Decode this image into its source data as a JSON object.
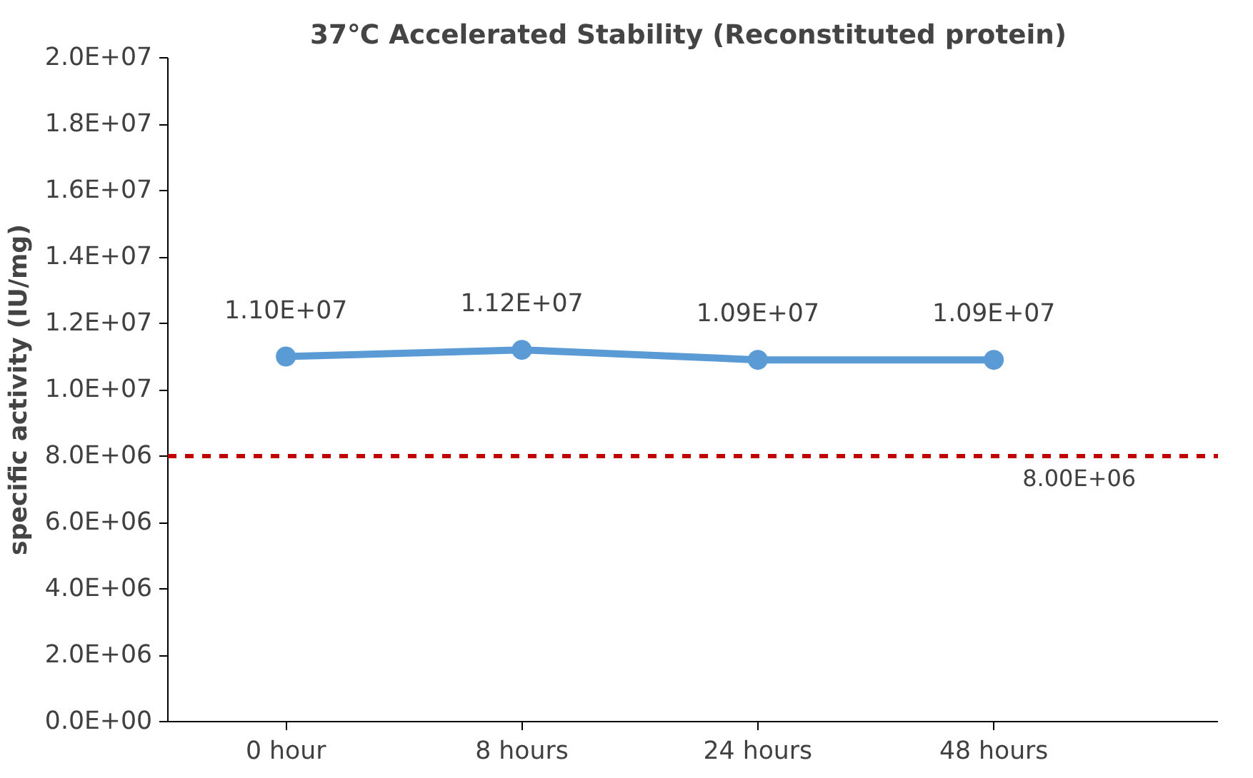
{
  "chart_data": {
    "type": "line",
    "title": "37℃ Accelerated  Stability (Reconstituted protein)",
    "ylabel": "specific activity (IU/mg)",
    "categories": [
      "0 hour",
      "8 hours",
      "24 hours",
      "48 hours"
    ],
    "series": [
      {
        "color": "#5b9bd5",
        "values": [
          11000000,
          11200000,
          10900000,
          10900000
        ],
        "value_labels": [
          "1.10E+07",
          "1.12E+07",
          "1.09E+07",
          "1.09E+07"
        ]
      }
    ],
    "ylim": [
      0,
      20000000
    ],
    "yticks": [
      {
        "value": 0,
        "label": "0.0E+00"
      },
      {
        "value": 2000000,
        "label": "2.0E+06"
      },
      {
        "value": 4000000,
        "label": "4.0E+06"
      },
      {
        "value": 6000000,
        "label": "6.0E+06"
      },
      {
        "value": 8000000,
        "label": "8.0E+06"
      },
      {
        "value": 10000000,
        "label": "1.0E+07"
      },
      {
        "value": 12000000,
        "label": "1.2E+07"
      },
      {
        "value": 14000000,
        "label": "1.4E+07"
      },
      {
        "value": 16000000,
        "label": "1.6E+07"
      },
      {
        "value": 18000000,
        "label": "1.8E+07"
      },
      {
        "value": 20000000,
        "label": "2.0E+07"
      }
    ],
    "ref_lines": [
      {
        "axis": "y",
        "value": 8000000,
        "label": "8.00E+06",
        "color": "#c00000",
        "line_style": "dashed"
      }
    ],
    "marker": "circle",
    "line_style": "solid"
  }
}
